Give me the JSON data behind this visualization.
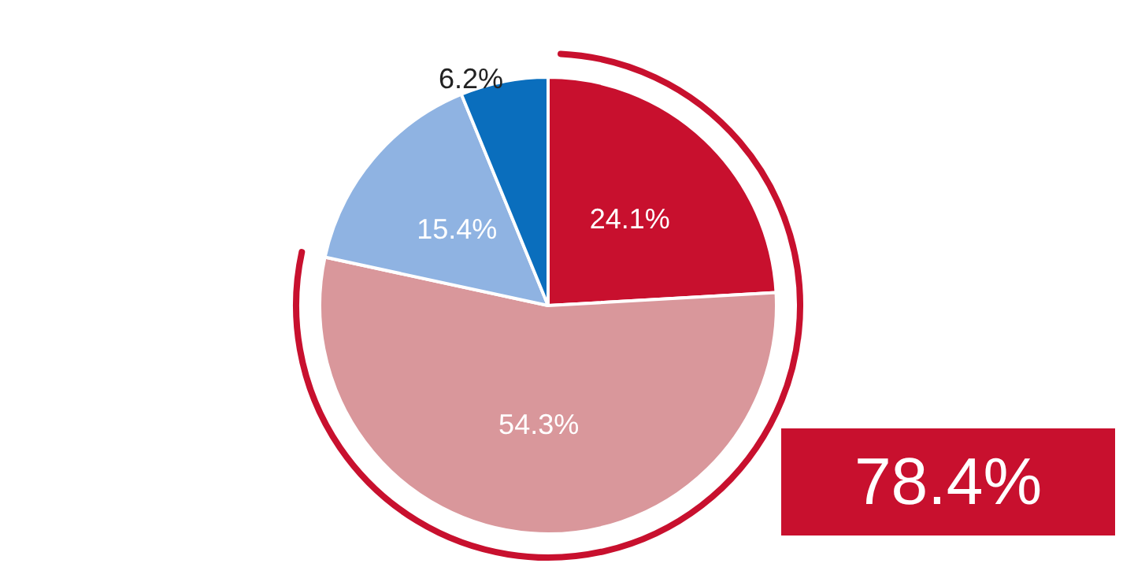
{
  "chart_data": {
    "type": "pie",
    "categories": [
      null,
      null,
      null,
      null
    ],
    "values": [
      24.1,
      54.3,
      15.4,
      6.2
    ],
    "colors": [
      "#c8102e",
      "#d9979b",
      "#8fb3e2",
      "#0a6ebd"
    ],
    "value_labels": [
      "24.1%",
      "54.3%",
      "15.4%",
      "6.2%"
    ],
    "annotations": [
      "78.4%"
    ]
  }
}
